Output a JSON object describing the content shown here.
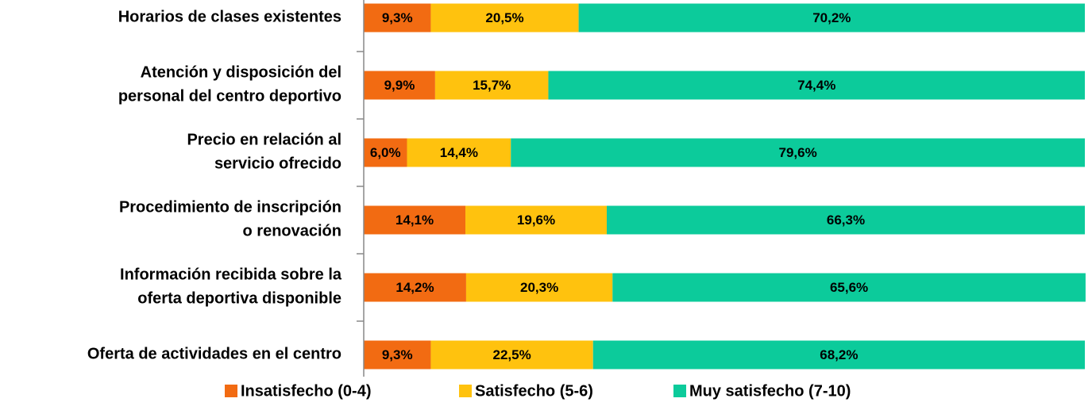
{
  "chart_data": {
    "type": "stacked_barh",
    "categories": [
      [
        "Horarios de clases existentes"
      ],
      [
        "Atención y disposición del",
        "personal del centro deportivo"
      ],
      [
        "Precio en relación al",
        "servicio ofrecido"
      ],
      [
        "Procedimiento de inscripción",
        "o renovación"
      ],
      [
        "Información recibida sobre la",
        "oferta deportiva disponible"
      ],
      [
        "Oferta de actividades en el centro"
      ]
    ],
    "series": [
      {
        "name": "Insatisfecho (0-4)",
        "color": "#f26b12",
        "values": [
          9.3,
          9.9,
          6.0,
          14.1,
          14.2,
          9.3
        ],
        "value_labels": [
          "9,3%",
          "9,9%",
          "6,0%",
          "14,1%",
          "14,2%",
          "9,3%"
        ]
      },
      {
        "name": "Satisfecho (5-6)",
        "color": "#ffc20e",
        "values": [
          20.5,
          15.7,
          14.4,
          19.6,
          20.3,
          22.5
        ],
        "value_labels": [
          "20,5%",
          "15,7%",
          "14,4%",
          "19,6%",
          "20,3%",
          "22,5%"
        ]
      },
      {
        "name": "Muy satisfecho (7-10)",
        "color": "#0ccb9b",
        "values": [
          70.2,
          74.4,
          79.6,
          66.3,
          65.6,
          68.2
        ],
        "value_labels": [
          "70,2%",
          "74,4%",
          "79,6%",
          "66,3%",
          "65,6%",
          "68,2%"
        ]
      }
    ],
    "xlim": [
      0,
      100
    ],
    "legend": "bottom"
  }
}
